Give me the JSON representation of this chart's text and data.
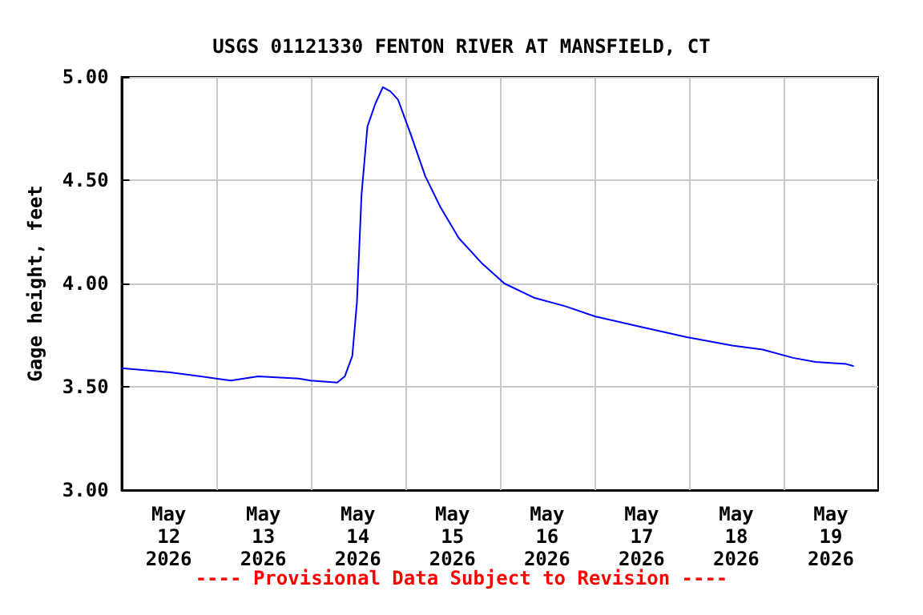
{
  "chart_data": {
    "type": "line",
    "title": "USGS 01121330 FENTON RIVER AT MANSFIELD, CT",
    "ylabel": "Gage height, feet",
    "annotations": [
      "---- Provisional Data Subject to Revision ----"
    ],
    "x": [
      "2026-05-12T00:00",
      "2026-05-12T12:20",
      "2026-05-13T00:00",
      "2026-05-13T03:45",
      "2026-05-13T10:40",
      "2026-05-13T21:00",
      "2026-05-14T00:00",
      "2026-05-14T06:45",
      "2026-05-14T08:40",
      "2026-05-14T10:35",
      "2026-05-14T11:45",
      "2026-05-14T12:55",
      "2026-05-14T14:25",
      "2026-05-14T16:25",
      "2026-05-14T18:20",
      "2026-05-14T20:15",
      "2026-05-14T22:10",
      "2026-05-15T01:15",
      "2026-05-15T05:05",
      "2026-05-15T08:55",
      "2026-05-15T13:35",
      "2026-05-15T19:20",
      "2026-05-16T01:10",
      "2026-05-16T08:50",
      "2026-05-16T16:35",
      "2026-05-17T00:15",
      "2026-05-17T11:50",
      "2026-05-17T23:25",
      "2026-05-18T11:00",
      "2026-05-18T18:40",
      "2026-05-19T02:25",
      "2026-05-19T08:10",
      "2026-05-19T15:55",
      "2026-05-19T17:50"
    ],
    "series": [
      {
        "color": "#0000ff",
        "values": [
          3.59,
          3.57,
          3.54,
          3.53,
          3.55,
          3.54,
          3.53,
          3.52,
          3.55,
          3.65,
          3.91,
          4.43,
          4.76,
          4.87,
          4.95,
          4.93,
          4.89,
          4.73,
          4.52,
          4.37,
          4.22,
          4.1,
          4.0,
          3.93,
          3.89,
          3.84,
          3.79,
          3.74,
          3.7,
          3.68,
          3.64,
          3.62,
          3.61,
          3.6
        ]
      }
    ],
    "xlim": [
      "2026-05-12T00:00",
      "2026-05-20T00:00"
    ],
    "xticks": [
      {
        "value": "2026-05-12T12:00",
        "label": "May\n12\n2026"
      },
      {
        "value": "2026-05-13T12:00",
        "label": "May\n13\n2026"
      },
      {
        "value": "2026-05-14T12:00",
        "label": "May\n14\n2026"
      },
      {
        "value": "2026-05-15T12:00",
        "label": "May\n15\n2026"
      },
      {
        "value": "2026-05-16T12:00",
        "label": "May\n16\n2026"
      },
      {
        "value": "2026-05-17T12:00",
        "label": "May\n17\n2026"
      },
      {
        "value": "2026-05-18T12:00",
        "label": "May\n18\n2026"
      },
      {
        "value": "2026-05-19T12:00",
        "label": "May\n19\n2026"
      },
      {
        "value": "2026-05-13T00:00",
        "label": null
      },
      {
        "value": "2026-05-14T00:00",
        "label": null
      },
      {
        "value": "2026-05-15T00:00",
        "label": null
      },
      {
        "value": "2026-05-16T00:00",
        "label": null
      },
      {
        "value": "2026-05-17T00:00",
        "label": null
      },
      {
        "value": "2026-05-18T00:00",
        "label": null
      },
      {
        "value": "2026-05-19T00:00",
        "label": null
      }
    ],
    "ylim": [
      3,
      5
    ],
    "yticks": [
      {
        "value": 3,
        "label": "3.00"
      },
      {
        "value": 3.5,
        "label": "3.50"
      },
      {
        "value": 4,
        "label": "4.00"
      },
      {
        "value": 4.5,
        "label": "4.50"
      },
      {
        "value": 5,
        "label": "5.00"
      }
    ],
    "grid": true,
    "marker": "none",
    "line_style": "solid"
  }
}
